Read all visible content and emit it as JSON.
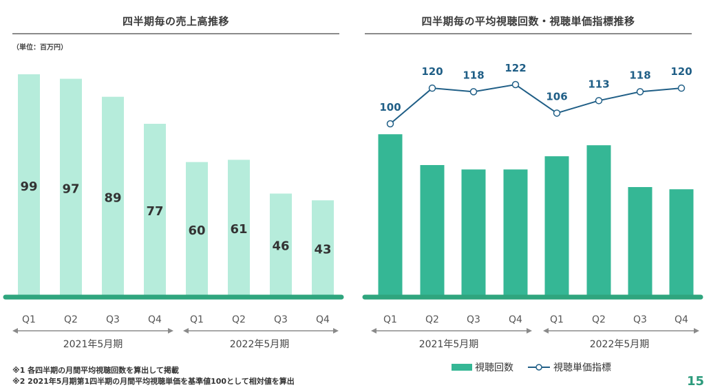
{
  "left_title": "四半期毎の売上高推移",
  "right_title": "四半期毎の平均視聴回数・視聴単価指標推移",
  "unit_note": "（単位：百万円）",
  "notes": [
    "※1 各四半期の月間平均視聴回数を算出して掲載",
    "※2 2021年5月期第1四半期の月間平均視聴単価を基準値100として相対値を算出"
  ],
  "page_number": "15",
  "colors": {
    "sales_bar": "#b6ecdb",
    "views_bar": "#35b795",
    "baseline": "#2fa57e",
    "line": "#1f5e86",
    "arrow": "#8a8a8a"
  },
  "legend": {
    "views_label": "視聴回数",
    "price_label": "視聴単価指標"
  },
  "chart_data": [
    {
      "type": "bar",
      "categories": [
        "Q1",
        "Q2",
        "Q3",
        "Q4",
        "Q1",
        "Q2",
        "Q3",
        "Q4"
      ],
      "groups": [
        {
          "label": "2021年5月期",
          "range": [
            0,
            3
          ]
        },
        {
          "label": "2022年5月期",
          "range": [
            4,
            7
          ]
        }
      ],
      "series": [
        {
          "values": [
            99,
            97,
            89,
            77,
            60,
            61,
            46,
            43
          ]
        }
      ],
      "title": "四半期毎の売上高推移",
      "unit": "（単位：百万円）",
      "ylim": [
        0,
        100
      ],
      "data_labels": true,
      "grid": false
    },
    {
      "type": "bar",
      "categories": [
        "Q1",
        "Q2",
        "Q3",
        "Q4",
        "Q1",
        "Q2",
        "Q3",
        "Q4"
      ],
      "groups": [
        {
          "label": "2021年5月期",
          "range": [
            0,
            3
          ]
        },
        {
          "label": "2022年5月期",
          "range": [
            4,
            7
          ]
        }
      ],
      "series": [
        {
          "name": "視聴回数",
          "type": "bar",
          "values": [
            0.74,
            0.6,
            0.58,
            0.58,
            0.64,
            0.69,
            0.5,
            0.49
          ],
          "value_scale": "relative (no axis printed)"
        },
        {
          "name": "視聴単価指標",
          "type": "line",
          "values": [
            100,
            120,
            118,
            122,
            106,
            113,
            118,
            120
          ],
          "data_labels": true
        }
      ],
      "title": "四半期毎の平均視聴回数・視聴単価指標推移",
      "legend_position": "bottom-right",
      "grid": false
    }
  ]
}
